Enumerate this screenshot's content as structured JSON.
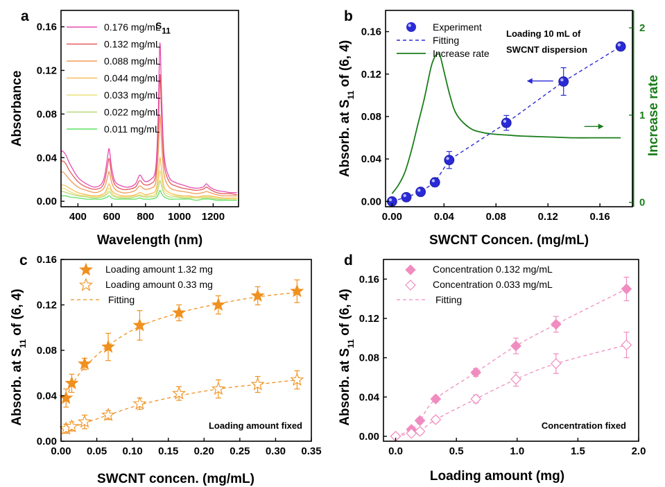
{
  "chart_data": [
    {
      "panel": "a",
      "type": "line",
      "xlabel": "Wavelength (nm)",
      "ylabel": "Absorbance",
      "xlim": [
        300,
        1350
      ],
      "ylim": [
        -0.005,
        0.175
      ],
      "xticks": [
        400,
        600,
        800,
        1000,
        1200
      ],
      "yticks": [
        0.0,
        0.04,
        0.08,
        0.12,
        0.16
      ],
      "ytick_labels": [
        "0.00",
        "0.04",
        "0.08",
        "0.12",
        "0.16"
      ],
      "annotation": "S",
      "annotation_sub": "11",
      "legend_position": "top-left",
      "x": [
        300,
        310,
        330,
        350,
        400,
        450,
        500,
        540,
        560,
        575,
        585,
        600,
        620,
        660,
        700,
        740,
        765,
        785,
        800,
        830,
        860,
        875,
        885,
        895,
        910,
        940,
        980,
        1020,
        1060,
        1100,
        1140,
        1160,
        1180,
        1220,
        1260,
        1300,
        1340
      ],
      "series": [
        {
          "name": "0.176 mg/mL",
          "color": "#e64bb0",
          "peak": 0.145,
          "values": [
            0.045,
            0.046,
            0.042,
            0.035,
            0.022,
            0.016,
            0.013,
            0.016,
            0.025,
            0.04,
            0.048,
            0.03,
            0.018,
            0.014,
            0.013,
            0.016,
            0.024,
            0.02,
            0.018,
            0.02,
            0.03,
            0.08,
            0.145,
            0.095,
            0.042,
            0.022,
            0.017,
            0.015,
            0.013,
            0.012,
            0.013,
            0.016,
            0.013,
            0.01,
            0.009,
            0.008,
            0.008
          ]
        },
        {
          "name": "0.132 mg/mL",
          "color": "#e55a5a",
          "peak": 0.116,
          "values": [
            0.036,
            0.037,
            0.034,
            0.028,
            0.018,
            0.013,
            0.011,
            0.013,
            0.02,
            0.032,
            0.039,
            0.024,
            0.015,
            0.011,
            0.011,
            0.013,
            0.019,
            0.016,
            0.015,
            0.016,
            0.024,
            0.064,
            0.116,
            0.076,
            0.034,
            0.018,
            0.014,
            0.012,
            0.011,
            0.01,
            0.011,
            0.013,
            0.011,
            0.008,
            0.007,
            0.007,
            0.006
          ]
        },
        {
          "name": "0.088 mg/mL",
          "color": "#ef9b57",
          "peak": 0.078,
          "values": [
            0.026,
            0.027,
            0.024,
            0.02,
            0.013,
            0.01,
            0.008,
            0.01,
            0.014,
            0.022,
            0.027,
            0.017,
            0.011,
            0.008,
            0.008,
            0.01,
            0.014,
            0.012,
            0.011,
            0.012,
            0.017,
            0.044,
            0.078,
            0.052,
            0.024,
            0.013,
            0.01,
            0.009,
            0.008,
            0.007,
            0.008,
            0.009,
            0.008,
            0.006,
            0.005,
            0.005,
            0.005
          ]
        },
        {
          "name": "0.044 mg/mL",
          "color": "#f5be5a",
          "peak": 0.04,
          "values": [
            0.015,
            0.015,
            0.014,
            0.012,
            0.008,
            0.006,
            0.005,
            0.006,
            0.008,
            0.013,
            0.016,
            0.01,
            0.007,
            0.005,
            0.005,
            0.006,
            0.008,
            0.007,
            0.006,
            0.007,
            0.01,
            0.024,
            0.04,
            0.028,
            0.013,
            0.008,
            0.006,
            0.005,
            0.005,
            0.004,
            0.005,
            0.005,
            0.005,
            0.004,
            0.003,
            0.003,
            0.003
          ]
        },
        {
          "name": "0.033 mg/mL",
          "color": "#ebe07a",
          "peak": 0.028,
          "values": [
            0.012,
            0.012,
            0.011,
            0.009,
            0.006,
            0.005,
            0.004,
            0.005,
            0.006,
            0.01,
            0.012,
            0.008,
            0.005,
            0.004,
            0.004,
            0.005,
            0.006,
            0.005,
            0.005,
            0.005,
            0.007,
            0.017,
            0.028,
            0.02,
            0.01,
            0.006,
            0.005,
            0.004,
            0.004,
            0.003,
            0.004,
            0.004,
            0.004,
            0.003,
            0.003,
            0.002,
            0.002
          ]
        },
        {
          "name": "0.022 mg/mL",
          "color": "#b8d878",
          "peak": 0.019,
          "values": [
            0.009,
            0.009,
            0.008,
            0.007,
            0.005,
            0.004,
            0.003,
            0.004,
            0.005,
            0.007,
            0.009,
            0.006,
            0.004,
            0.003,
            0.003,
            0.004,
            0.005,
            0.004,
            0.004,
            0.004,
            0.005,
            0.012,
            0.019,
            0.014,
            0.007,
            0.004,
            0.004,
            0.003,
            0.003,
            0.003,
            0.003,
            0.003,
            0.003,
            0.002,
            0.002,
            0.002,
            0.002
          ]
        },
        {
          "name": "0.011 mg/mL",
          "color": "#5fe05f",
          "peak": 0.01,
          "values": [
            0.005,
            0.005,
            0.005,
            0.004,
            0.003,
            0.002,
            0.002,
            0.002,
            0.003,
            0.004,
            0.005,
            0.003,
            0.002,
            0.002,
            0.002,
            0.002,
            0.003,
            0.002,
            0.002,
            0.002,
            0.003,
            0.006,
            0.01,
            0.007,
            0.004,
            0.002,
            0.002,
            0.002,
            0.002,
            0.001,
            0.002,
            0.002,
            0.002,
            0.001,
            0.001,
            0.001,
            0.001
          ]
        }
      ]
    },
    {
      "panel": "b",
      "type": "scatter",
      "xlabel": "SWCNT Concen. (mg/mL)",
      "ylabel_main": "Absorb. at S",
      "ylabel_sub": "11",
      "ylabel_tail": " of (6, 4)",
      "y2label": "Increase rate",
      "xlim": [
        -0.005,
        0.185
      ],
      "ylim": [
        -0.005,
        0.18
      ],
      "y2lim": [
        -0.05,
        2.2
      ],
      "xticks": [
        0.0,
        0.04,
        0.08,
        0.12,
        0.16
      ],
      "xtick_labels": [
        "0.00",
        "0.04",
        "0.08",
        "0.12",
        "0.16"
      ],
      "yticks": [
        0.0,
        0.04,
        0.08,
        0.12,
        0.16
      ],
      "ytick_labels": [
        "0.00",
        "0.04",
        "0.08",
        "0.12",
        "0.16"
      ],
      "y2ticks": [
        0,
        1,
        2
      ],
      "y2tick_labels": [
        "0",
        "1",
        "2"
      ],
      "annotation_lines": [
        "Loading 10 mL of",
        "SWCNT dispersion"
      ],
      "legend_position": "top-left",
      "experiment": {
        "name": "Experiment",
        "color": "#2a2ad6",
        "x": [
          0.0,
          0.011,
          0.022,
          0.033,
          0.044,
          0.088,
          0.132,
          0.176
        ],
        "y": [
          0.0,
          0.004,
          0.009,
          0.018,
          0.039,
          0.074,
          0.113,
          0.146
        ],
        "err": [
          0.002,
          0.002,
          0.003,
          0.004,
          0.008,
          0.007,
          0.013,
          0.003
        ]
      },
      "fitting": {
        "name": "Fitting",
        "color": "#2a2ad6",
        "x": [
          0.0,
          0.011,
          0.022,
          0.033,
          0.044,
          0.088,
          0.132,
          0.176
        ],
        "y": [
          0.0,
          0.004,
          0.009,
          0.018,
          0.039,
          0.074,
          0.113,
          0.146
        ]
      },
      "increase_rate": {
        "name": "Increase rate",
        "color": "#1a7d1a",
        "x": [
          0.0,
          0.005,
          0.01,
          0.015,
          0.02,
          0.025,
          0.03,
          0.033,
          0.035,
          0.037,
          0.04,
          0.045,
          0.05,
          0.06,
          0.07,
          0.08,
          0.09,
          0.1,
          0.12,
          0.14,
          0.16,
          0.176
        ],
        "y": [
          0.1,
          0.2,
          0.35,
          0.6,
          0.9,
          1.2,
          1.55,
          1.67,
          1.7,
          1.68,
          1.5,
          1.2,
          1.0,
          0.85,
          0.8,
          0.78,
          0.77,
          0.76,
          0.75,
          0.74,
          0.74,
          0.74
        ]
      },
      "arrows": [
        {
          "target": "left-axis",
          "color": "#2a2ad6",
          "x": 0.124,
          "y": 0.1135
        },
        {
          "target": "right-axis",
          "color": "#1a7d1a",
          "x": 0.148,
          "y2": 0.87
        }
      ]
    },
    {
      "panel": "c",
      "type": "scatter",
      "xlabel": "SWCNT concen. (mg/mL)",
      "ylabel_main": "Absorb. at S",
      "ylabel_sub": "11",
      "ylabel_tail": " of (6, 4)",
      "xlim": [
        0.0,
        0.35
      ],
      "ylim": [
        0.0,
        0.16
      ],
      "xticks": [
        0.0,
        0.05,
        0.1,
        0.15,
        0.2,
        0.25,
        0.3,
        0.35
      ],
      "xtick_labels": [
        "0.00",
        "0.05",
        "0.10",
        "0.15",
        "0.20",
        "0.25",
        "0.30",
        "0.35"
      ],
      "yticks": [
        0.0,
        0.04,
        0.08,
        0.12,
        0.16
      ],
      "ytick_labels": [
        "0.00",
        "0.04",
        "0.08",
        "0.12",
        "0.16"
      ],
      "annotation": "Loading amount fixed",
      "legend_position": "top-left",
      "color": "#f0901e",
      "series": [
        {
          "name": "Loading amount 1.32 mg",
          "marker": "filled-star",
          "x": [
            0.007,
            0.015,
            0.033,
            0.066,
            0.11,
            0.165,
            0.22,
            0.275,
            0.33
          ],
          "y": [
            0.038,
            0.051,
            0.068,
            0.083,
            0.102,
            0.113,
            0.12,
            0.128,
            0.132
          ],
          "err": [
            0.008,
            0.008,
            0.005,
            0.012,
            0.013,
            0.007,
            0.008,
            0.008,
            0.01
          ]
        },
        {
          "name": "Loading amount 0.33 mg",
          "marker": "open-star",
          "x": [
            0.007,
            0.015,
            0.033,
            0.066,
            0.11,
            0.165,
            0.22,
            0.275,
            0.33
          ],
          "y": [
            0.011,
            0.013,
            0.017,
            0.023,
            0.033,
            0.042,
            0.046,
            0.05,
            0.054
          ],
          "err": [
            0.004,
            0.004,
            0.006,
            0.004,
            0.005,
            0.006,
            0.008,
            0.007,
            0.008
          ]
        }
      ],
      "fitting": {
        "name": "Fitting",
        "curves": [
          {
            "x": [
              0.007,
              0.015,
              0.033,
              0.066,
              0.11,
              0.165,
              0.22,
              0.275,
              0.33
            ],
            "y": [
              0.038,
              0.049,
              0.065,
              0.084,
              0.101,
              0.113,
              0.121,
              0.127,
              0.131
            ]
          },
          {
            "x": [
              0.007,
              0.015,
              0.033,
              0.066,
              0.11,
              0.165,
              0.22,
              0.275,
              0.33
            ],
            "y": [
              0.01,
              0.012,
              0.016,
              0.023,
              0.032,
              0.04,
              0.046,
              0.05,
              0.054
            ]
          }
        ]
      }
    },
    {
      "panel": "d",
      "type": "scatter",
      "xlabel": "Loading amount (mg)",
      "ylabel_main": "Absorb. at S",
      "ylabel_sub": "11",
      "ylabel_tail": " of (6, 4)",
      "xlim": [
        -0.1,
        2.0
      ],
      "ylim": [
        -0.005,
        0.18
      ],
      "xticks": [
        0.0,
        0.5,
        1.0,
        1.5,
        2.0
      ],
      "xtick_labels": [
        "0.0",
        "0.5",
        "1.0",
        "1.5",
        "2.0"
      ],
      "yticks": [
        0.0,
        0.04,
        0.08,
        0.12,
        0.16
      ],
      "ytick_labels": [
        "0.00",
        "0.04",
        "0.08",
        "0.12",
        "0.16"
      ],
      "annotation": "Concentration fixed",
      "legend_position": "top-left",
      "color": "#f08cc0",
      "series": [
        {
          "name": "Concentration 0.132 mg/mL",
          "marker": "filled-diamond",
          "x": [
            0.0,
            0.13,
            0.2,
            0.33,
            0.66,
            0.99,
            1.32,
            1.9
          ],
          "y": [
            0.0,
            0.007,
            0.016,
            0.038,
            0.065,
            0.092,
            0.114,
            0.15
          ],
          "err": [
            0.001,
            0.002,
            0.003,
            0.003,
            0.004,
            0.008,
            0.008,
            0.012
          ]
        },
        {
          "name": "Concentration 0.033 mg/mL",
          "marker": "open-diamond",
          "x": [
            0.0,
            0.13,
            0.2,
            0.33,
            0.66,
            0.99,
            1.32,
            1.9
          ],
          "y": [
            0.0,
            0.003,
            0.005,
            0.017,
            0.038,
            0.058,
            0.074,
            0.093
          ],
          "err": [
            0.001,
            0.002,
            0.003,
            0.003,
            0.004,
            0.007,
            0.01,
            0.013
          ]
        }
      ],
      "fitting": {
        "name": "Fitting",
        "curves": [
          {
            "x": [
              0.0,
              0.13,
              0.2,
              0.33,
              0.66,
              0.99,
              1.32,
              1.9
            ],
            "y": [
              0.0,
              0.007,
              0.016,
              0.038,
              0.065,
              0.092,
              0.114,
              0.15
            ]
          },
          {
            "x": [
              0.0,
              0.13,
              0.2,
              0.33,
              0.66,
              0.99,
              1.32,
              1.9
            ],
            "y": [
              0.0,
              0.003,
              0.005,
              0.017,
              0.038,
              0.058,
              0.074,
              0.093
            ]
          }
        ]
      }
    }
  ]
}
